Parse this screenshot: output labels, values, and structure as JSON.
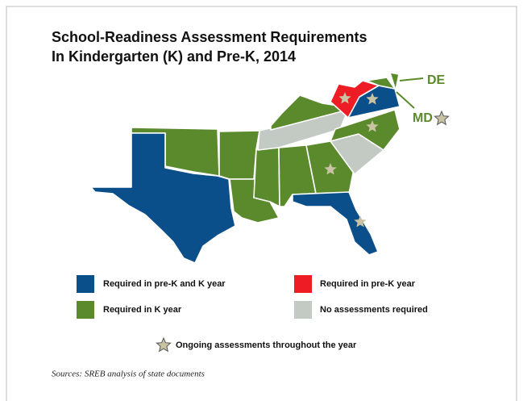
{
  "title": [
    "School-Readiness Assessment Requirements",
    "In Kindergarten (K) and Pre-K, 2014"
  ],
  "labels": {
    "de": "DE",
    "md": "MD"
  },
  "legend": [
    {
      "label": "Required in pre-K and K year",
      "color": "#0b4f8a"
    },
    {
      "label": "Required in pre-K year",
      "color": "#ee1c24"
    },
    {
      "label": "Required in K year",
      "color": "#5a8a2c"
    },
    {
      "label": "No assessments required",
      "color": "#c3c9c3"
    }
  ],
  "star_note": "Ongoing assessments throughout the year",
  "source": "Sources: SREB analysis of state documents"
}
